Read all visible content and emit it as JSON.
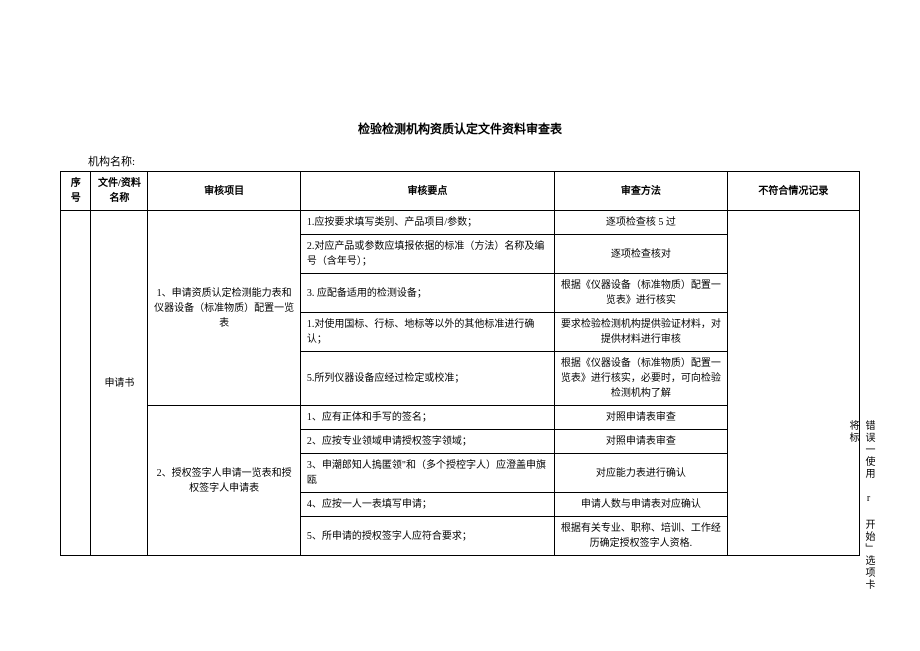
{
  "title": "检验检测机构资质认定文件资料审查表",
  "org_label": "机构名称:",
  "columns": {
    "seq": "序号",
    "doc": "文件/资料名称",
    "item": "审核项目",
    "point": "审核要点",
    "method": "审查方法",
    "record": "不符合情况记录"
  },
  "doc_name": "申请书",
  "item1": "1、申请资质认定检测能力表和仪器设备（标准物质）配置一览表",
  "item2": "2、授权签字人申请一览表和授权签字人申请表",
  "rows": [
    {
      "point": "1.应按要求填写类别、产品项目/参数；",
      "method": "逐项检查核 5 过"
    },
    {
      "point": "2.对应产品或参数应填报依据的标准（方法）名称及编号（含年号）；",
      "method": "逐项检查核对"
    },
    {
      "point": "3. 应配备适用的检测设备；",
      "method": "根据《仪器设备（标准物质）配置一览表》进行核实"
    },
    {
      "point": "1.对使用国标、行标、地标等以外的其他标准进行确认；",
      "method": "要求检验检测机构提供验证材料，对提供材料进行审核"
    },
    {
      "point": "5.所列仪器设备应经过检定或校准；",
      "method": "根据《仪器设备（标准物质）配置一览表》进行核实，必要时，可向检验检测机构了解"
    },
    {
      "point": "1、应有正体和手写的签名；",
      "method": "对照申请表审查"
    },
    {
      "point": "2、应按专业领域申请授权签字领域；",
      "method": "对照申请表审查"
    },
    {
      "point": "3、申潮郎知人摀匿领\"和（多个授椌字人）应澄盖申旗瓯",
      "method": "对应能力表进行确认"
    },
    {
      "point": "4、应按一人一表填写申请；",
      "method": "申请人数与申请表对应确认"
    },
    {
      "point": "5、所申请的授权签字人应符合要求；",
      "method": "根据有关专业、职称、培训、工作经历确定授权签字人资格."
    }
  ],
  "side_note": "错误一使用 r 开始」选项卡将标"
}
